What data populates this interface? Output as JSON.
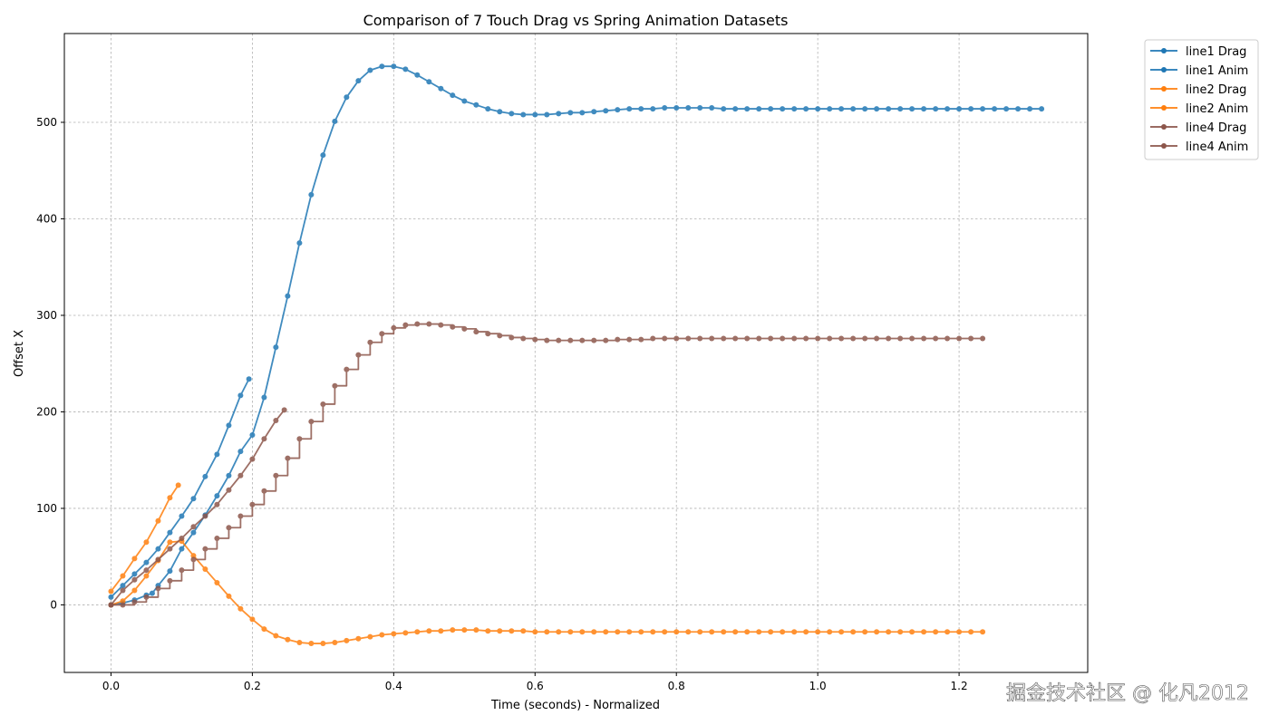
{
  "chart_data": {
    "type": "line",
    "title": "Comparison of 7 Touch Drag vs Spring Animation Datasets",
    "xlabel": "Time (seconds) - Normalized",
    "ylabel": "Offset X",
    "xlim": [
      -0.066,
      1.382
    ],
    "ylim": [
      -70,
      592
    ],
    "xticks": [
      0.0,
      0.2,
      0.4,
      0.6,
      0.8,
      1.0,
      1.2
    ],
    "xtick_labels": [
      "0.0",
      "0.2",
      "0.4",
      "0.6",
      "0.8",
      "1.0",
      "1.2"
    ],
    "yticks": [
      0,
      100,
      200,
      300,
      400,
      500
    ],
    "ytick_labels": [
      "0",
      "100",
      "200",
      "300",
      "400",
      "500"
    ],
    "grid": true,
    "legend_position": "outside-top-right",
    "series": [
      {
        "name": "line1 Drag",
        "color": "#1f77b4",
        "steps": false,
        "x": [
          0.0,
          0.0167,
          0.0333,
          0.05,
          0.0667,
          0.0833,
          0.1,
          0.1167,
          0.1333,
          0.15,
          0.1667,
          0.1833,
          0.1952
        ],
        "y": [
          8,
          20,
          32,
          44,
          58,
          75,
          92,
          110,
          133,
          156,
          186,
          217,
          234
        ]
      },
      {
        "name": "line1 Anim",
        "color": "#1f77b4",
        "steps": false,
        "x": [
          0.0,
          0.0167,
          0.0333,
          0.05,
          0.0583,
          0.0667,
          0.0833,
          0.1,
          0.1167,
          0.1333,
          0.15,
          0.1667,
          0.1833,
          0.2,
          0.2167,
          0.2333,
          0.25,
          0.2667,
          0.2833,
          0.3,
          0.3167,
          0.3333,
          0.35,
          0.3667,
          0.3833,
          0.4,
          0.4167,
          0.4333,
          0.45,
          0.4667,
          0.4833,
          0.5,
          0.5167,
          0.5333,
          0.55,
          0.5667,
          0.5833,
          0.6,
          0.6167,
          0.6333,
          0.65,
          0.6667,
          0.6833,
          0.7,
          0.7167,
          0.7333,
          0.75,
          0.7667,
          0.7833,
          0.8,
          0.8167,
          0.8333,
          0.85,
          0.8667,
          0.8833,
          0.9,
          0.9167,
          0.9333,
          0.95,
          0.9667,
          0.9833,
          1.0,
          1.0167,
          1.0333,
          1.05,
          1.0667,
          1.0833,
          1.1,
          1.1167,
          1.1333,
          1.15,
          1.1667,
          1.1833,
          1.2,
          1.2167,
          1.2333,
          1.25,
          1.2667,
          1.2833,
          1.3,
          1.3167
        ],
        "y": [
          0,
          2,
          5,
          10,
          12,
          20,
          35,
          58,
          75,
          93,
          113,
          134,
          159,
          176,
          215,
          267,
          320,
          375,
          425,
          466,
          501,
          526,
          543,
          554,
          558,
          558,
          555,
          549,
          542,
          535,
          528,
          522,
          518,
          514,
          511,
          509,
          508,
          508,
          508,
          509,
          510,
          510,
          511,
          512,
          513,
          514,
          514,
          514,
          515,
          515,
          515,
          515,
          515,
          514,
          514,
          514,
          514,
          514,
          514,
          514,
          514,
          514,
          514,
          514,
          514,
          514,
          514,
          514,
          514,
          514,
          514,
          514,
          514,
          514,
          514,
          514,
          514,
          514,
          514,
          514,
          514
        ]
      },
      {
        "name": "line2 Drag",
        "color": "#ff7f0e",
        "steps": false,
        "x": [
          0.0,
          0.0167,
          0.0333,
          0.05,
          0.0667,
          0.0833,
          0.0952
        ],
        "y": [
          14,
          30,
          48,
          65,
          87,
          111,
          124
        ]
      },
      {
        "name": "line2 Anim",
        "color": "#ff7f0e",
        "steps": false,
        "x": [
          0.0,
          0.0167,
          0.0333,
          0.05,
          0.0667,
          0.0833,
          0.1,
          0.1167,
          0.1333,
          0.15,
          0.1667,
          0.1833,
          0.2,
          0.2167,
          0.2333,
          0.25,
          0.2667,
          0.2833,
          0.3,
          0.3167,
          0.3333,
          0.35,
          0.3667,
          0.3833,
          0.4,
          0.4167,
          0.4333,
          0.45,
          0.4667,
          0.4833,
          0.5,
          0.5167,
          0.5333,
          0.55,
          0.5667,
          0.5833,
          0.6,
          0.6167,
          0.6333,
          0.65,
          0.6667,
          0.6833,
          0.7,
          0.7167,
          0.7333,
          0.75,
          0.7667,
          0.7833,
          0.8,
          0.8167,
          0.8333,
          0.85,
          0.8667,
          0.8833,
          0.9,
          0.9167,
          0.9333,
          0.95,
          0.9667,
          0.9833,
          1.0,
          1.0167,
          1.0333,
          1.05,
          1.0667,
          1.0833,
          1.1,
          1.1167,
          1.1333,
          1.15,
          1.1667,
          1.1833,
          1.2,
          1.2167,
          1.2333
        ],
        "y": [
          0,
          4,
          15,
          30,
          46,
          65,
          66,
          51,
          37,
          23,
          9,
          -4,
          -15,
          -25,
          -32,
          -36,
          -39,
          -40,
          -40,
          -39,
          -37,
          -35,
          -33,
          -31,
          -30,
          -29,
          -28,
          -27,
          -27,
          -26,
          -26,
          -26,
          -27,
          -27,
          -27,
          -27,
          -28,
          -28,
          -28,
          -28,
          -28,
          -28,
          -28,
          -28,
          -28,
          -28,
          -28,
          -28,
          -28,
          -28,
          -28,
          -28,
          -28,
          -28,
          -28,
          -28,
          -28,
          -28,
          -28,
          -28,
          -28,
          -28,
          -28,
          -28,
          -28,
          -28,
          -28,
          -28,
          -28,
          -28,
          -28,
          -28,
          -28,
          -28,
          -28
        ]
      },
      {
        "name": "line4 Drag",
        "color": "#8c564b",
        "steps": false,
        "x": [
          0.0,
          0.0167,
          0.0333,
          0.05,
          0.0667,
          0.0833,
          0.1,
          0.1167,
          0.1333,
          0.15,
          0.1667,
          0.1833,
          0.2,
          0.2167,
          0.2333,
          0.2452
        ],
        "y": [
          0,
          15,
          26,
          36,
          47,
          58,
          69,
          81,
          92,
          104,
          119,
          134,
          151,
          172,
          191,
          202
        ]
      },
      {
        "name": "line4 Anim",
        "color": "#8c564b",
        "steps": true,
        "x": [
          0.0,
          0.0167,
          0.0333,
          0.05,
          0.0667,
          0.0833,
          0.1,
          0.1167,
          0.1333,
          0.15,
          0.1667,
          0.1833,
          0.2,
          0.2167,
          0.2333,
          0.25,
          0.2667,
          0.2833,
          0.3,
          0.3167,
          0.3333,
          0.35,
          0.3667,
          0.3833,
          0.4,
          0.4167,
          0.4333,
          0.45,
          0.4667,
          0.4833,
          0.5,
          0.5167,
          0.5333,
          0.55,
          0.5667,
          0.5833,
          0.6,
          0.6167,
          0.6333,
          0.65,
          0.6667,
          0.6833,
          0.7,
          0.7167,
          0.7333,
          0.75,
          0.7667,
          0.7833,
          0.8,
          0.8167,
          0.8333,
          0.85,
          0.8667,
          0.8833,
          0.9,
          0.9167,
          0.9333,
          0.95,
          0.9667,
          0.9833,
          1.0,
          1.0167,
          1.0333,
          1.05,
          1.0667,
          1.0833,
          1.1,
          1.1167,
          1.1333,
          1.15,
          1.1667,
          1.1833,
          1.2,
          1.2167,
          1.2333
        ],
        "y": [
          0,
          0,
          3,
          8,
          17,
          25,
          36,
          47,
          58,
          69,
          80,
          92,
          104,
          118,
          134,
          152,
          172,
          190,
          208,
          227,
          244,
          259,
          272,
          281,
          287,
          290,
          291,
          291,
          290,
          288,
          286,
          283,
          281,
          279,
          277,
          276,
          275,
          274,
          274,
          274,
          274,
          274,
          274,
          275,
          275,
          275,
          276,
          276,
          276,
          276,
          276,
          276,
          276,
          276,
          276,
          276,
          276,
          276,
          276,
          276,
          276,
          276,
          276,
          276,
          276,
          276,
          276,
          276,
          276,
          276,
          276,
          276,
          276,
          276,
          276
        ]
      }
    ]
  },
  "watermark": "掘金技术社区 @ 化凡2012"
}
